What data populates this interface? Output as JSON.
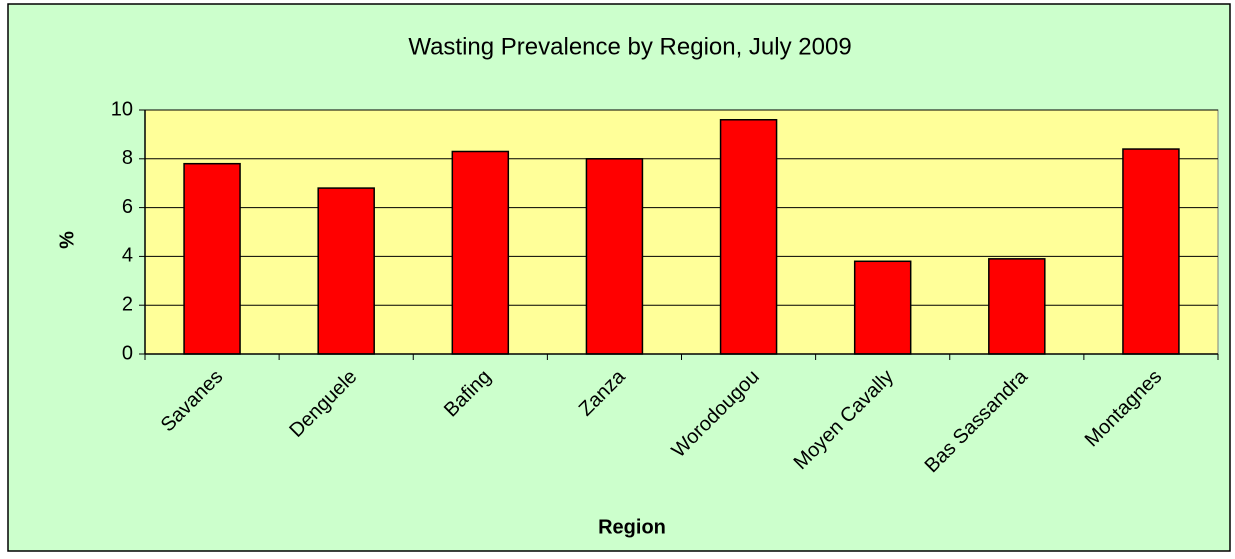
{
  "chart_data": {
    "type": "bar",
    "title": "Wasting Prevalence by Region, July 2009",
    "x_label": "Region",
    "y_label": "%",
    "categories": [
      "Savanes",
      "Denguele",
      "Bafing",
      "Zanza",
      "Worodougou",
      "Moyen Cavally",
      "Bas Sassandra",
      "Montagnes"
    ],
    "values": [
      7.8,
      6.8,
      8.3,
      8.0,
      9.6,
      3.8,
      3.9,
      8.4
    ],
    "color": "#ff0000",
    "ylim": [
      0,
      10
    ],
    "yticks": [
      0,
      2,
      4,
      6,
      8,
      10
    ],
    "grid": true
  }
}
